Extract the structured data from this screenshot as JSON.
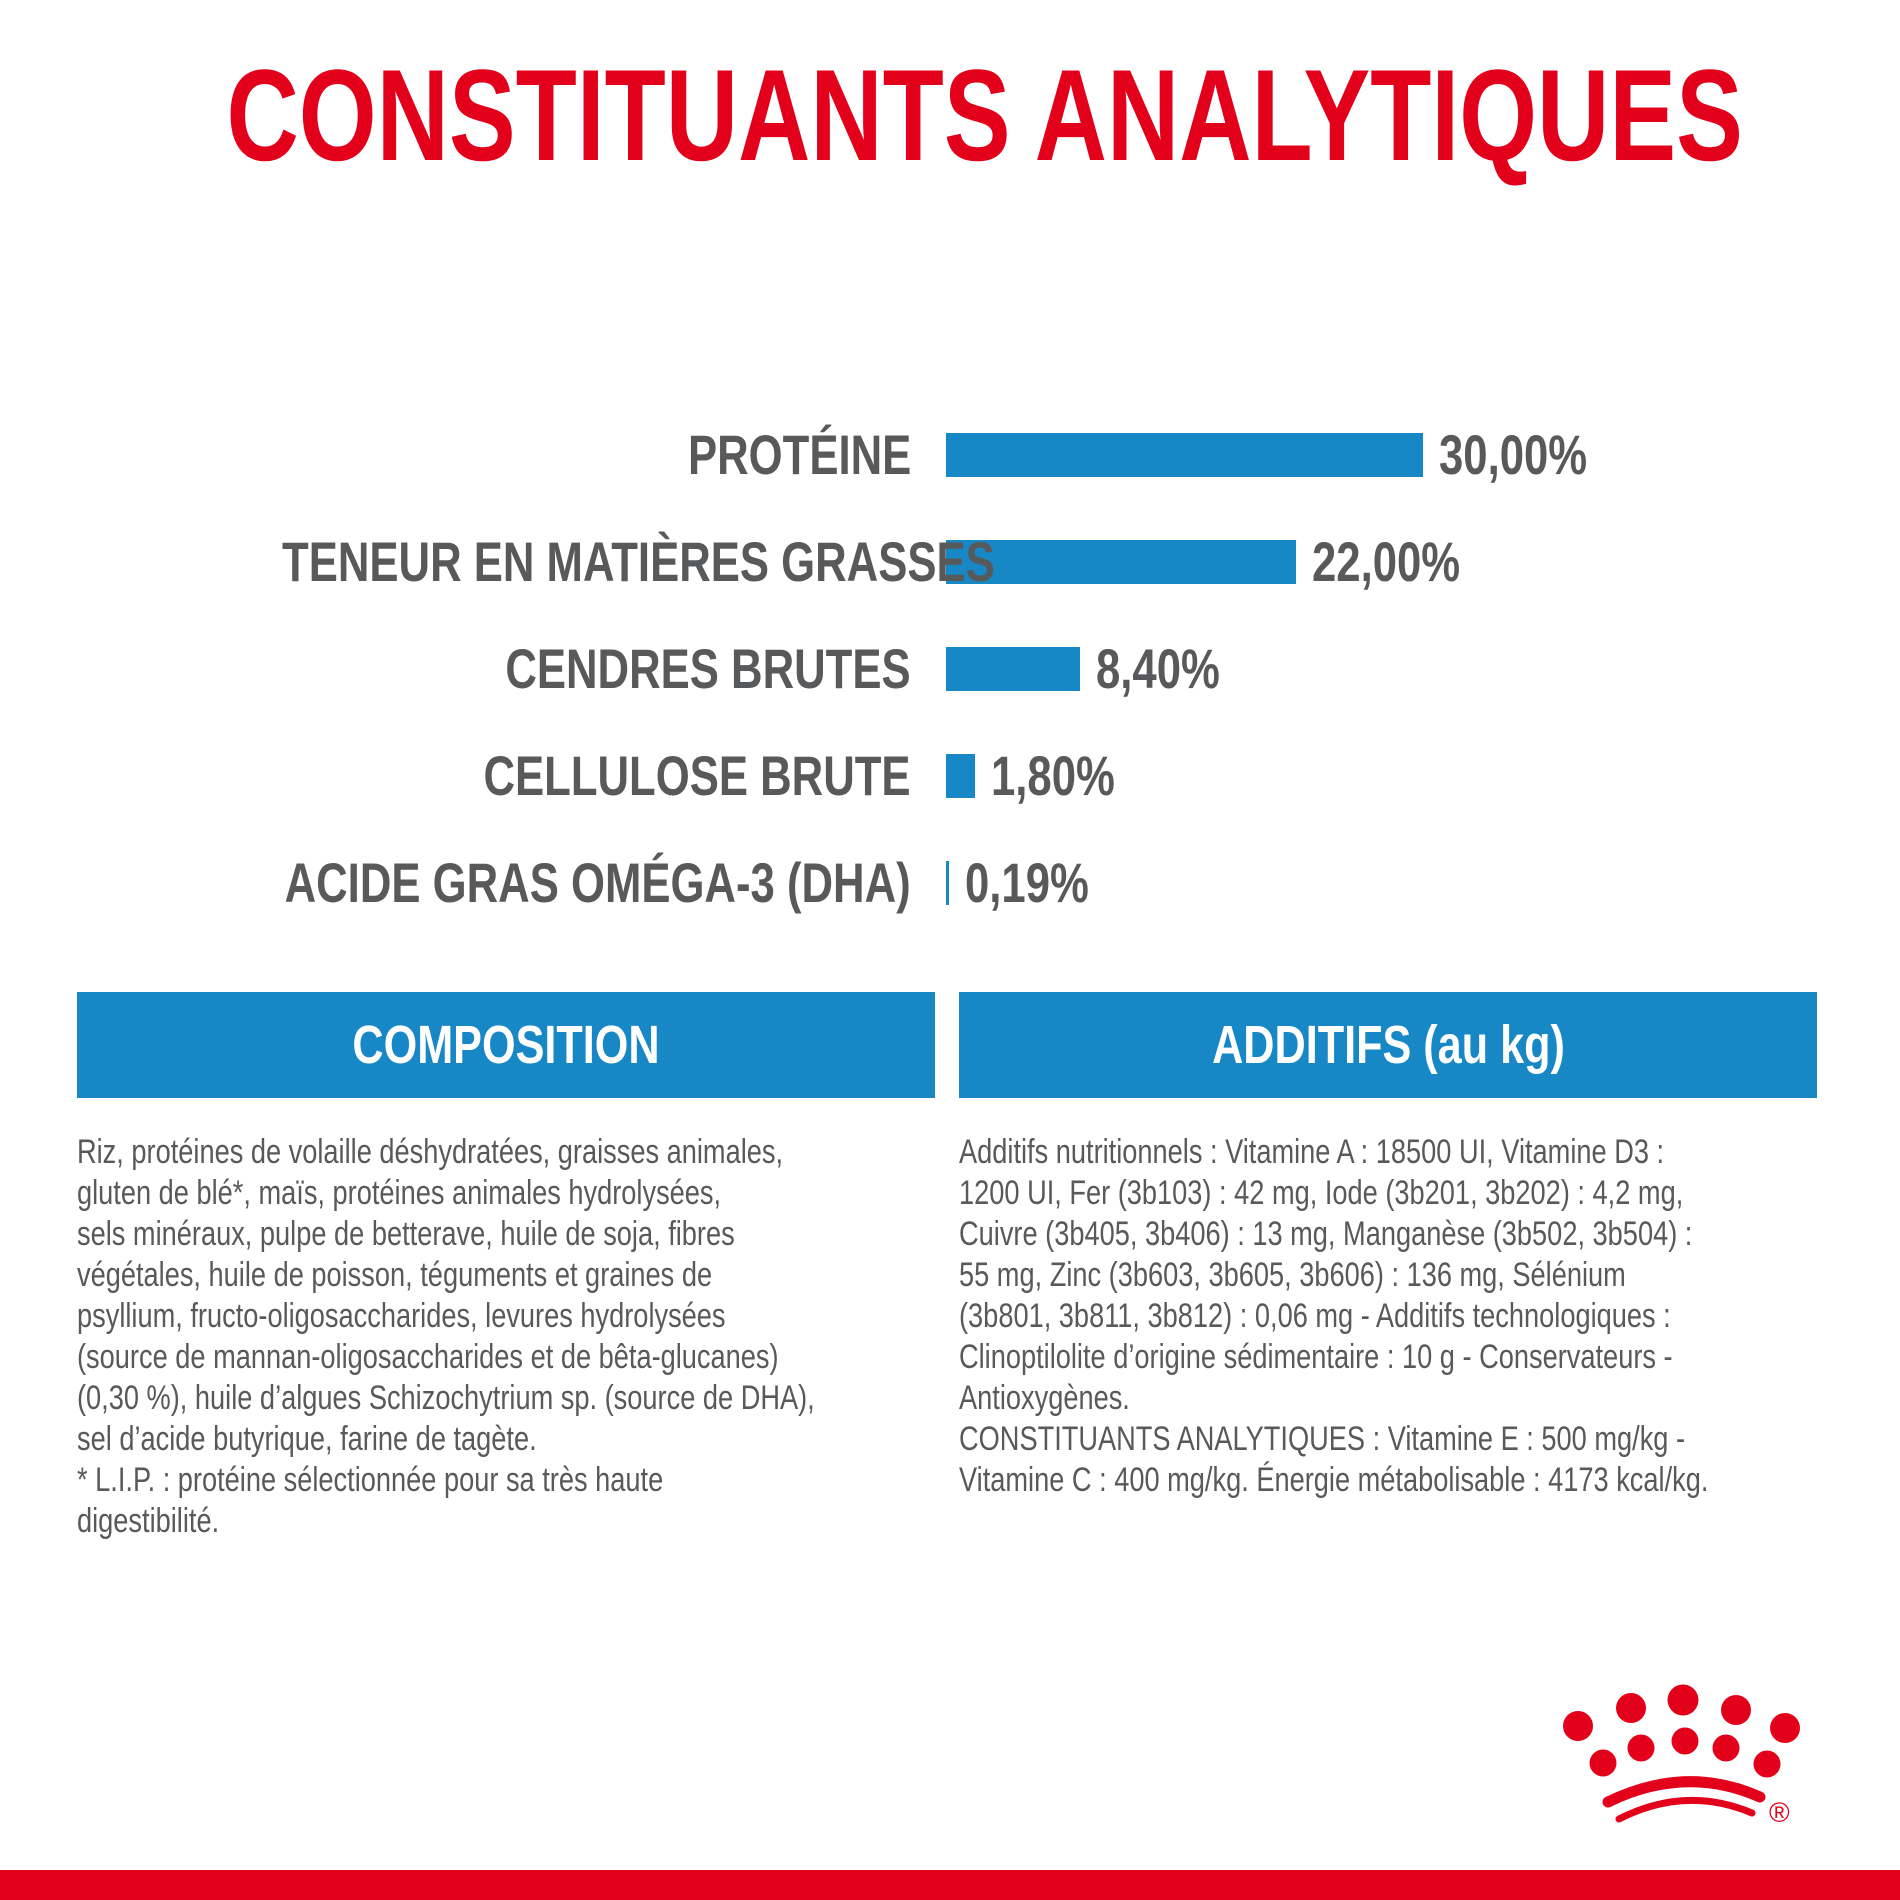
{
  "page": {
    "title": "CONSTITUANTS ANALYTIQUES"
  },
  "colors": {
    "brand_red": "#e2001a",
    "brand_blue": "#1787c6",
    "text_gray": "#58595b"
  },
  "chart_data": {
    "type": "bar",
    "orientation": "horizontal",
    "title": "CONSTITUANTS ANALYTIQUES",
    "categories": [
      "PROTÉINE",
      "TENEUR EN MATIÈRES GRASSES",
      "CENDRES BRUTES",
      "CELLULOSE BRUTE",
      "ACIDE GRAS OMÉGA-3 (DHA)"
    ],
    "values": [
      30.0,
      22.0,
      8.4,
      1.8,
      0.19
    ],
    "value_labels": [
      "30,00%",
      "22,00%",
      "8,40%",
      "1,80%",
      "0,19%"
    ],
    "unit": "%",
    "xlim": [
      0,
      30
    ],
    "grid": false,
    "legend": false,
    "bar_color": "#1787c6",
    "label_color": "#58595b"
  },
  "sections": {
    "composition": {
      "header": "COMPOSITION",
      "lines": [
        "Riz, protéines de volaille déshydratées, graisses animales,",
        "gluten de blé*, maïs, protéines animales hydrolysées,",
        "sels minéraux, pulpe de betterave, huile de soja, fibres",
        "végétales, huile de poisson, téguments et graines de",
        "psyllium, fructo-oligosaccharides, levures hydrolysées",
        "(source de mannan-oligosaccharides et de bêta-glucanes)",
        "(0,30 %), huile d’algues Schizochytrium sp. (source de DHA),",
        "sel d’acide butyrique, farine de tagète.",
        "* L.I.P. : protéine sélectionnée pour sa très haute",
        "digestibilité."
      ]
    },
    "additifs": {
      "header": "ADDITIFS (au kg)",
      "lines": [
        "Additifs nutritionnels : Vitamine A : 18500 UI, Vitamine D3 :",
        "1200 UI, Fer (3b103) : 42 mg, Iode (3b201, 3b202) : 4,2 mg,",
        "Cuivre (3b405, 3b406) : 13 mg, Manganèse (3b502, 3b504) :",
        "55 mg, Zinc (3b603, 3b605, 3b606) : 136 mg, Sélénium",
        "(3b801, 3b811, 3b812) : 0,06 mg - Additifs technologiques :",
        "Clinoptilolite d’origine sédimentaire : 10 g - Conservateurs -",
        "Antioxygènes.",
        "CONSTITUANTS ANALYTIQUES : Vitamine E : 500 mg/kg -",
        "Vitamine C : 400 mg/kg. Énergie métabolisable : 4173 kcal/kg."
      ]
    }
  },
  "footer": {
    "logo": "royal-canin-crown",
    "registered_mark": "®"
  }
}
